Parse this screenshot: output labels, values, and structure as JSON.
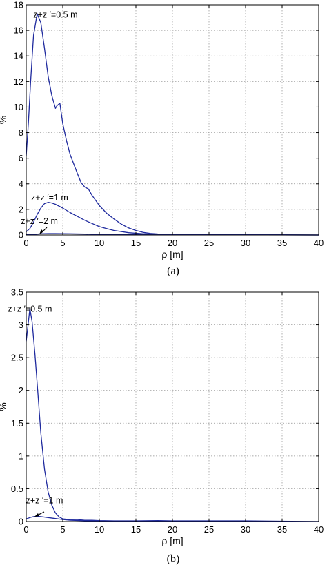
{
  "chart_data": [
    {
      "type": "line",
      "panel_label": "(a)",
      "xlabel": "ρ [m]",
      "ylabel": "%",
      "xlim": [
        0,
        40
      ],
      "ylim": [
        0,
        18
      ],
      "xticks": [
        0,
        5,
        10,
        15,
        20,
        25,
        30,
        35,
        40
      ],
      "yticks": [
        0,
        2,
        4,
        6,
        8,
        10,
        12,
        14,
        16,
        18
      ],
      "grid": true,
      "series": [
        {
          "name": "z+z ′=0.5 m",
          "color": "#1f2a9e",
          "x": [
            0,
            0.3,
            0.6,
            1.0,
            1.5,
            2.0,
            2.5,
            3.0,
            3.5,
            4.0,
            4.2,
            4.6,
            5.0,
            5.5,
            6.0,
            7.0,
            7.5,
            8.0,
            8.5,
            9.0,
            10.0,
            11.0,
            12.0,
            13.0,
            14.0,
            15.0,
            16.0,
            17.0,
            18.0,
            20.0,
            22.0,
            25.0,
            30.0,
            35.0,
            40.0
          ],
          "y": [
            6.2,
            8.8,
            12.0,
            15.6,
            17.3,
            16.6,
            14.6,
            12.4,
            10.9,
            9.9,
            10.1,
            10.3,
            8.7,
            7.4,
            6.3,
            4.8,
            4.1,
            3.75,
            3.6,
            3.1,
            2.3,
            1.7,
            1.25,
            0.85,
            0.55,
            0.35,
            0.2,
            0.12,
            0.08,
            0.04,
            0.03,
            0.02,
            0.01,
            0.01,
            0.0
          ]
        },
        {
          "name": "z+z ′=1 m",
          "color": "#1f2a9e",
          "x": [
            0,
            0.5,
            1.0,
            1.5,
            2.0,
            2.5,
            3.0,
            3.5,
            4.0,
            5.0,
            6.0,
            7.0,
            8.0,
            9.0,
            10.0,
            11.0,
            12.0,
            14.0,
            16.0,
            18.0,
            20.0,
            25.0,
            30.0,
            35.0,
            40.0
          ],
          "y": [
            0.25,
            0.5,
            1.0,
            1.6,
            2.1,
            2.45,
            2.55,
            2.5,
            2.4,
            2.1,
            1.75,
            1.45,
            1.15,
            0.9,
            0.65,
            0.5,
            0.35,
            0.18,
            0.09,
            0.05,
            0.03,
            0.02,
            0.01,
            0.01,
            0.0
          ]
        },
        {
          "name": "z+z ′=2 m",
          "color": "#1f2a9e",
          "x": [
            0,
            1.0,
            2.0,
            3.0,
            4.0,
            5.0,
            6.0,
            8.0,
            10.0,
            15.0,
            20.0,
            30.0,
            40.0
          ],
          "y": [
            0.02,
            0.05,
            0.09,
            0.11,
            0.11,
            0.1,
            0.09,
            0.07,
            0.05,
            0.03,
            0.02,
            0.01,
            0.0
          ]
        }
      ],
      "annotations": [
        {
          "text": "z+z ′=0.5 m",
          "x": 4.0,
          "y": 17.0
        },
        {
          "text": "z+z ′=1 m",
          "x": 3.2,
          "y": 2.7
        },
        {
          "text": "z+z ′=2 m",
          "x": 1.8,
          "y": 0.85
        }
      ]
    },
    {
      "type": "line",
      "panel_label": "(b)",
      "xlabel": "ρ [m]",
      "ylabel": "%",
      "xlim": [
        0,
        40
      ],
      "ylim": [
        0,
        3.5
      ],
      "xticks": [
        0,
        5,
        10,
        15,
        20,
        25,
        30,
        35,
        40
      ],
      "yticks": [
        0,
        0.5,
        1,
        1.5,
        2,
        2.5,
        3,
        3.5
      ],
      "grid": true,
      "series": [
        {
          "name": "z+z ′=0.5 m",
          "color": "#1f2a9e",
          "x": [
            0,
            0.3,
            0.5,
            0.8,
            1.2,
            1.6,
            2.0,
            2.5,
            3.0,
            3.5,
            4.0,
            4.5,
            5.0,
            6.0,
            7.0,
            8.0,
            9.0,
            10.0,
            12.0,
            15.0,
            18.0,
            20.0,
            25.0,
            30.0,
            35.0,
            40.0
          ],
          "y": [
            2.75,
            3.05,
            3.25,
            3.05,
            2.55,
            1.95,
            1.35,
            0.8,
            0.45,
            0.25,
            0.13,
            0.07,
            0.04,
            0.03,
            0.03,
            0.02,
            0.02,
            0.015,
            0.01,
            0.01,
            0.015,
            0.01,
            0.01,
            0.01,
            0.005,
            0.0
          ]
        },
        {
          "name": "z+z ′=1 m",
          "color": "#1f2a9e",
          "x": [
            0,
            0.5,
            1.0,
            1.5,
            2.0,
            3.0,
            4.0,
            5.0,
            6.0,
            8.0,
            10.0,
            15.0,
            20.0,
            30.0,
            40.0
          ],
          "y": [
            0.04,
            0.06,
            0.075,
            0.08,
            0.075,
            0.06,
            0.045,
            0.03,
            0.02,
            0.012,
            0.008,
            0.005,
            0.004,
            0.002,
            0.0
          ]
        }
      ],
      "annotations": [
        {
          "text": "z+z ′=0.5 m",
          "x": 0.5,
          "y": 3.2
        },
        {
          "text": "z+z ′=1 m",
          "x": 2.5,
          "y": 0.28
        }
      ]
    }
  ]
}
